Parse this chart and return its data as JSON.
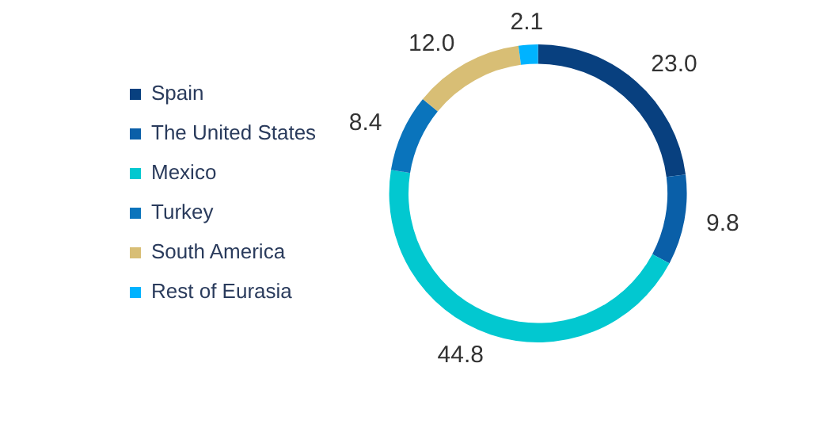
{
  "chart_data": {
    "type": "donut",
    "categories": [
      "Spain",
      "The United States",
      "Mexico",
      "Turkey",
      "South America",
      "Rest of Eurasia"
    ],
    "values": [
      23.0,
      9.8,
      44.8,
      8.4,
      12.0,
      2.1
    ],
    "colors": [
      "#08407f",
      "#0a5fa8",
      "#02c8d0",
      "#0a74bc",
      "#d8be75",
      "#00b3ff"
    ],
    "value_labels": [
      "23.0",
      "9.8",
      "44.8",
      "8.4",
      "12.0",
      "2.1"
    ],
    "legend": "left",
    "data_labels": true
  }
}
